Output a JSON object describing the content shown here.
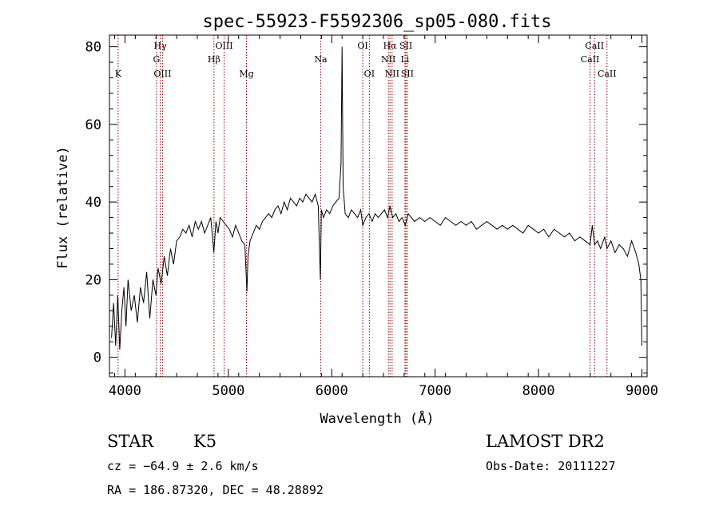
{
  "chart_data": {
    "type": "line",
    "title": "spec-55923-F5592306_sp05-080.fits",
    "xlabel": "Wavelength (Å)",
    "ylabel": "Flux (relative)",
    "xlim": [
      3850,
      9050
    ],
    "ylim": [
      -5,
      83
    ],
    "xticks": [
      4000,
      5000,
      6000,
      7000,
      8000,
      9000
    ],
    "yticks": [
      0,
      20,
      40,
      60,
      80
    ],
    "series": [
      {
        "x": [
          3870,
          3890,
          3910,
          3930,
          3950,
          3970,
          3990,
          4010,
          4030,
          4060,
          4090,
          4120,
          4150,
          4180,
          4210,
          4240,
          4270,
          4300,
          4320,
          4350,
          4380,
          4410,
          4440,
          4470,
          4500,
          4530,
          4560,
          4590,
          4620,
          4650,
          4680,
          4710,
          4740,
          4770,
          4800,
          4830,
          4860,
          4880,
          4900,
          4920,
          4950,
          4980,
          5010,
          5040,
          5070,
          5100,
          5130,
          5160,
          5180,
          5190,
          5210,
          5240,
          5270,
          5300,
          5330,
          5360,
          5390,
          5420,
          5450,
          5480,
          5510,
          5540,
          5570,
          5600,
          5630,
          5660,
          5690,
          5720,
          5750,
          5780,
          5810,
          5840,
          5870,
          5890,
          5900,
          5920,
          5950,
          5980,
          6010,
          6040,
          6070,
          6090,
          6100,
          6110,
          6130,
          6160,
          6190,
          6220,
          6250,
          6280,
          6300,
          6330,
          6360,
          6390,
          6420,
          6450,
          6480,
          6510,
          6540,
          6563,
          6590,
          6620,
          6650,
          6680,
          6710,
          6740,
          6770,
          6800,
          6850,
          6900,
          6950,
          7000,
          7050,
          7100,
          7150,
          7200,
          7250,
          7300,
          7350,
          7400,
          7450,
          7500,
          7550,
          7600,
          7650,
          7700,
          7750,
          7800,
          7850,
          7900,
          7950,
          8000,
          8050,
          8100,
          8150,
          8200,
          8250,
          8300,
          8350,
          8400,
          8450,
          8498,
          8520,
          8542,
          8570,
          8600,
          8640,
          8662,
          8700,
          8740,
          8780,
          8820,
          8860,
          8900,
          8940,
          8970,
          8990,
          9000
        ],
        "y": [
          5,
          14,
          3,
          16,
          2,
          12,
          18,
          8,
          20,
          12,
          16,
          9,
          18,
          14,
          22,
          10,
          20,
          16,
          23,
          19,
          26,
          21,
          28,
          24,
          30,
          31,
          33,
          32,
          34,
          31,
          35,
          33,
          35,
          32,
          34,
          36,
          27,
          35,
          32,
          36,
          35,
          34,
          33,
          31,
          34,
          32,
          30,
          29,
          17,
          26,
          30,
          32,
          34,
          33,
          35,
          36,
          37,
          36,
          38,
          39,
          37,
          40,
          38,
          41,
          40,
          39,
          41,
          40,
          42,
          41,
          40,
          42,
          39,
          20,
          38,
          36,
          38,
          37,
          39,
          40,
          41,
          50,
          80,
          44,
          37,
          36,
          38,
          37,
          36,
          38,
          34,
          36,
          37,
          35,
          37,
          36,
          37,
          38,
          36,
          39,
          36,
          37,
          35,
          36,
          34,
          37,
          36,
          35,
          36,
          35,
          36,
          35,
          34,
          36,
          35,
          34,
          35,
          34,
          35,
          33,
          34,
          35,
          34,
          33,
          34,
          33,
          34,
          33,
          32,
          34,
          33,
          32,
          33,
          31,
          33,
          32,
          31,
          32,
          30,
          31,
          30,
          29,
          34,
          29,
          30,
          28,
          31,
          28,
          30,
          27,
          29,
          28,
          26,
          30,
          27,
          24,
          20,
          3
        ]
      }
    ],
    "lines": [
      {
        "label": "K",
        "x": 3934,
        "row": 3
      },
      {
        "label": "Hγ",
        "x": 4341,
        "row": 1
      },
      {
        "label": "G",
        "x": 4305,
        "row": 2
      },
      {
        "label": "OIII",
        "x": 4363,
        "row": 3
      },
      {
        "label": "OIII",
        "x": 4959,
        "row": 1
      },
      {
        "label": "Hβ",
        "x": 4861,
        "row": 2
      },
      {
        "label": "Mg",
        "x": 5175,
        "row": 3
      },
      {
        "label": "Na",
        "x": 5893,
        "row": 2
      },
      {
        "label": "OI",
        "x": 6300,
        "row": 1
      },
      {
        "label": "OI",
        "x": 6364,
        "row": 3
      },
      {
        "label": "Hα",
        "x": 6563,
        "row": 1
      },
      {
        "label": "SII",
        "x": 6717,
        "row": 1
      },
      {
        "label": "NII",
        "x": 6548,
        "row": 2
      },
      {
        "label": "Li",
        "x": 6708,
        "row": 2
      },
      {
        "label": "NII",
        "x": 6584,
        "row": 3
      },
      {
        "label": "SII",
        "x": 6731,
        "row": 3
      },
      {
        "label": "CaII",
        "x": 8542,
        "row": 1
      },
      {
        "label": "CaII",
        "x": 8498,
        "row": 2
      },
      {
        "label": "CaII",
        "x": 8662,
        "row": 3
      }
    ]
  },
  "info": {
    "object_class": "STAR",
    "subclass": "K5",
    "cz": "cz = −64.9 ± 2.6 km/s",
    "coords": "RA = 186.87320, DEC =  48.28892",
    "survey": "LAMOST DR2",
    "obs_date": "Obs-Date: 20111227"
  },
  "colors": {
    "spectrum": "#000000",
    "line_markers": "#8b0000",
    "axes": "#000000"
  }
}
